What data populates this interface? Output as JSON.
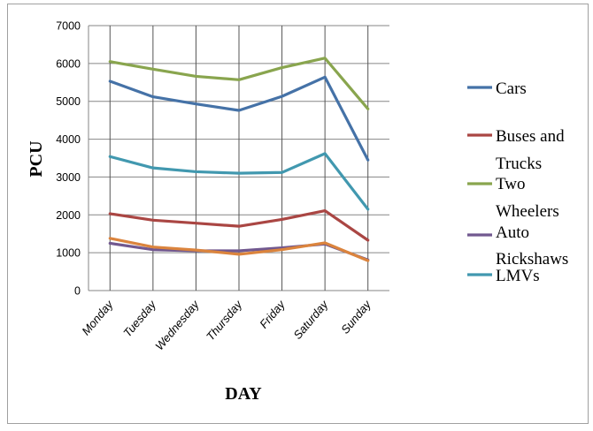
{
  "chart_data": {
    "type": "line",
    "title": "",
    "xlabel": "DAY",
    "ylabel": "PCU",
    "ylim": [
      0,
      7000
    ],
    "y_ticks": [
      0,
      1000,
      2000,
      3000,
      4000,
      5000,
      6000,
      7000
    ],
    "grid": "horizontal and vertical",
    "legend_position": "right",
    "categories": [
      "Monday",
      "Tuesday",
      "Wednesday",
      "Thursday",
      "Friday",
      "Saturday",
      "Sunday"
    ],
    "series": [
      {
        "name": "Cars",
        "color": "#4572a7",
        "values": [
          5530,
          5120,
          4930,
          4760,
          5130,
          5640,
          3450
        ]
      },
      {
        "name": "Buses and Trucks",
        "color": "#aa4643",
        "values": [
          2030,
          1860,
          1780,
          1700,
          1880,
          2110,
          1330
        ]
      },
      {
        "name": "Two Wheelers",
        "color": "#89a54e",
        "values": [
          6050,
          5850,
          5660,
          5570,
          5890,
          6140,
          4800
        ]
      },
      {
        "name": "Auto Rickshaws",
        "color": "#71588f",
        "values": [
          1250,
          1080,
          1050,
          1050,
          1130,
          1230,
          810
        ]
      },
      {
        "name": "LMVs",
        "color": "#4198af",
        "values": [
          3540,
          3240,
          3140,
          3100,
          3120,
          3620,
          2150
        ]
      },
      {
        "name": "",
        "color": "#db843d",
        "values": [
          1380,
          1150,
          1070,
          960,
          1080,
          1260,
          790
        ]
      }
    ],
    "legend_lines": [
      {
        "text": "Cars"
      },
      {
        "text": "Buses and"
      },
      {
        "text": "Trucks"
      },
      {
        "text": "Two"
      },
      {
        "text": "Wheelers"
      },
      {
        "text": "Auto"
      },
      {
        "text": "Rickshaws"
      },
      {
        "text": "LMVs"
      }
    ]
  }
}
